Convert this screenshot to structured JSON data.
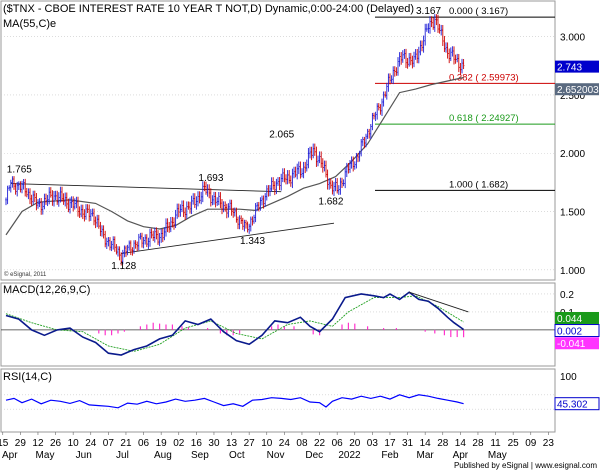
{
  "colors": {
    "price_up": "#1f1fd6",
    "price_down": "#cc0000",
    "ma": "#555555",
    "fib_red": "#cc0000",
    "fib_green": "#1a9a1a",
    "macd_line": "#0a1a8c",
    "macd_signal": "#22a022",
    "macd_hist": "#ff33cc",
    "rsi_line": "#0000ff",
    "grid": "#c8c8c8",
    "tag_blue_bg": "#0000cc",
    "tag_green_bg": "#1a9a1a",
    "tag_magenta_bg": "#ff33ff",
    "tag_gray_bg": "#5a6a80"
  },
  "header": {
    "title": "($TNX - CBOE INTEREST RATE 10 YEAR T NOT,D) Dynamic,0:00-24:00 (Delayed)",
    "ma_label": "MA(55,C)e",
    "copyright": "© eSignal, 2011"
  },
  "footer": {
    "publisher": "Published by eSignal | www.esignal.com"
  },
  "chart_data": [
    {
      "type": "candlestick",
      "title": "($TNX - CBOE INTEREST RATE 10 YEAR T NOT,D) Dynamic,0:00-24:00 (Delayed)",
      "ylim": [
        0.93,
        3.28
      ],
      "y_ticks": [
        1.0,
        1.5,
        2.0,
        2.5,
        3.0
      ],
      "y_tick_labels": [
        "1.000",
        "1.500",
        "2.000",
        "2.500",
        "3.000"
      ],
      "last_price_tag": "2.743",
      "ma_tag": "2.652003",
      "price_points": [
        [
          0,
          1.6
        ],
        [
          3,
          1.75
        ],
        [
          12,
          1.69
        ],
        [
          20,
          1.55
        ],
        [
          30,
          1.64
        ],
        [
          40,
          1.57
        ],
        [
          50,
          1.48
        ],
        [
          55,
          1.47
        ],
        [
          60,
          1.3
        ],
        [
          67,
          1.2
        ],
        [
          72,
          1.13
        ],
        [
          80,
          1.22
        ],
        [
          90,
          1.28
        ],
        [
          98,
          1.3
        ],
        [
          108,
          1.5
        ],
        [
          116,
          1.55
        ],
        [
          124,
          1.69
        ],
        [
          132,
          1.58
        ],
        [
          140,
          1.52
        ],
        [
          146,
          1.43
        ],
        [
          150,
          1.35
        ],
        [
          156,
          1.5
        ],
        [
          162,
          1.65
        ],
        [
          170,
          1.76
        ],
        [
          178,
          1.8
        ],
        [
          186,
          1.87
        ],
        [
          192,
          2.03
        ],
        [
          197,
          1.91
        ],
        [
          203,
          1.72
        ],
        [
          207,
          1.68
        ],
        [
          213,
          1.85
        ],
        [
          220,
          1.98
        ],
        [
          228,
          2.25
        ],
        [
          235,
          2.45
        ],
        [
          242,
          2.7
        ],
        [
          248,
          2.83
        ],
        [
          255,
          2.78
        ],
        [
          260,
          2.95
        ],
        [
          264,
          3.08
        ],
        [
          268,
          3.16
        ],
        [
          272,
          3.0
        ],
        [
          276,
          2.87
        ],
        [
          281,
          2.8
        ],
        [
          286,
          2.74
        ]
      ],
      "ma_points": [
        [
          0,
          1.3
        ],
        [
          10,
          1.5
        ],
        [
          20,
          1.58
        ],
        [
          40,
          1.6
        ],
        [
          56,
          1.57
        ],
        [
          66,
          1.5
        ],
        [
          76,
          1.42
        ],
        [
          86,
          1.37
        ],
        [
          96,
          1.35
        ],
        [
          106,
          1.38
        ],
        [
          116,
          1.46
        ],
        [
          126,
          1.52
        ],
        [
          136,
          1.52
        ],
        [
          146,
          1.52
        ],
        [
          156,
          1.51
        ],
        [
          166,
          1.57
        ],
        [
          176,
          1.63
        ],
        [
          186,
          1.7
        ],
        [
          196,
          1.74
        ],
        [
          206,
          1.8
        ],
        [
          216,
          1.93
        ],
        [
          226,
          2.08
        ],
        [
          236,
          2.3
        ],
        [
          246,
          2.52
        ],
        [
          256,
          2.55
        ],
        [
          266,
          2.59
        ],
        [
          276,
          2.62
        ],
        [
          286,
          2.65
        ]
      ],
      "trend_lines": [
        {
          "from": [
            3,
            1.74
          ],
          "to": [
            172,
            1.67
          ]
        },
        {
          "from": [
            72,
            1.14
          ],
          "to": [
            205,
            1.4
          ]
        }
      ],
      "fib_levels": [
        {
          "value": 3.167,
          "label": "0.000 ( 3.167)",
          "color": "#000000"
        },
        {
          "value": 2.59973,
          "label": "0.382 ( 2.59973)",
          "color": "#cc0000"
        },
        {
          "value": 2.24927,
          "label": "0.618 ( 2.24927)",
          "color": "#1a9a1a"
        },
        {
          "value": 1.682,
          "label": "1.000 ( 1.682)",
          "color": "#000000"
        }
      ],
      "annotations": [
        {
          "text": "1.765",
          "x": 3,
          "y": 1.765
        },
        {
          "text": "1.128",
          "x": 72,
          "y": 1.128
        },
        {
          "text": "1.693",
          "x": 124,
          "y": 1.693
        },
        {
          "text": "1.343",
          "x": 150,
          "y": 1.343
        },
        {
          "text": "2.065",
          "x": 172,
          "y": 2.065
        },
        {
          "text": "1.682",
          "x": 199,
          "y": 1.682
        },
        {
          "text": "3.167",
          "x": 212,
          "y": 3.167
        }
      ]
    },
    {
      "type": "macd",
      "title": "MACD(12,26,9,C)",
      "ylim": [
        -0.19,
        0.25
      ],
      "y_ticks": [
        0.2,
        0.1
      ],
      "y_tick_labels": [
        "0.2",
        "0.1"
      ],
      "tags": [
        "0.044",
        "0.002",
        "-0.041"
      ],
      "macd_line": [
        [
          0,
          0.08
        ],
        [
          8,
          0.06
        ],
        [
          16,
          0.0
        ],
        [
          24,
          -0.03
        ],
        [
          32,
          0.0
        ],
        [
          40,
          0.01
        ],
        [
          48,
          -0.04
        ],
        [
          56,
          -0.07
        ],
        [
          64,
          -0.13
        ],
        [
          72,
          -0.14
        ],
        [
          80,
          -0.11
        ],
        [
          88,
          -0.09
        ],
        [
          96,
          -0.05
        ],
        [
          104,
          -0.03
        ],
        [
          112,
          0.05
        ],
        [
          120,
          0.03
        ],
        [
          128,
          0.06
        ],
        [
          136,
          -0.01
        ],
        [
          144,
          -0.06
        ],
        [
          152,
          -0.08
        ],
        [
          160,
          -0.03
        ],
        [
          168,
          0.05
        ],
        [
          176,
          0.04
        ],
        [
          184,
          0.07
        ],
        [
          190,
          0.02
        ],
        [
          196,
          -0.01
        ],
        [
          204,
          0.06
        ],
        [
          212,
          0.18
        ],
        [
          222,
          0.2
        ],
        [
          230,
          0.19
        ],
        [
          236,
          0.18
        ],
        [
          240,
          0.2
        ],
        [
          246,
          0.17
        ],
        [
          252,
          0.21
        ],
        [
          258,
          0.17
        ],
        [
          264,
          0.16
        ],
        [
          270,
          0.12
        ],
        [
          276,
          0.07
        ],
        [
          280,
          0.04
        ],
        [
          286,
          0.002
        ]
      ],
      "signal_line": [
        [
          0,
          0.09
        ],
        [
          16,
          0.04
        ],
        [
          32,
          0.0
        ],
        [
          48,
          -0.01
        ],
        [
          64,
          -0.09
        ],
        [
          80,
          -0.12
        ],
        [
          96,
          -0.08
        ],
        [
          112,
          0.01
        ],
        [
          128,
          0.05
        ],
        [
          144,
          -0.02
        ],
        [
          160,
          -0.05
        ],
        [
          176,
          0.03
        ],
        [
          190,
          0.05
        ],
        [
          204,
          0.02
        ],
        [
          214,
          0.1
        ],
        [
          230,
          0.18
        ],
        [
          246,
          0.18
        ],
        [
          256,
          0.19
        ],
        [
          270,
          0.13
        ],
        [
          286,
          0.044
        ]
      ],
      "histogram": [
        [
          58,
          -0.02
        ],
        [
          62,
          -0.03
        ],
        [
          66,
          -0.03
        ],
        [
          70,
          -0.02
        ],
        [
          74,
          -0.01
        ],
        [
          84,
          0.02
        ],
        [
          88,
          0.03
        ],
        [
          92,
          0.04
        ],
        [
          96,
          0.035
        ],
        [
          100,
          0.03
        ],
        [
          104,
          0.03
        ],
        [
          110,
          0.02
        ],
        [
          114,
          0.015
        ],
        [
          126,
          0.01
        ],
        [
          134,
          -0.02
        ],
        [
          138,
          -0.03
        ],
        [
          142,
          -0.03
        ],
        [
          146,
          -0.02
        ],
        [
          166,
          0.02
        ],
        [
          170,
          0.03
        ],
        [
          174,
          0.02
        ],
        [
          180,
          0.02
        ],
        [
          192,
          -0.025
        ],
        [
          196,
          -0.03
        ],
        [
          210,
          0.03
        ],
        [
          214,
          0.04
        ],
        [
          218,
          0.035
        ],
        [
          226,
          0.02
        ],
        [
          236,
          0.01
        ],
        [
          244,
          0.01
        ],
        [
          262,
          -0.01
        ],
        [
          268,
          -0.02
        ],
        [
          274,
          -0.03
        ],
        [
          278,
          -0.04
        ],
        [
          282,
          -0.04
        ],
        [
          286,
          -0.041
        ]
      ],
      "trend_line": {
        "from": [
          252,
          0.21
        ],
        "to": [
          289,
          0.1
        ]
      }
    },
    {
      "type": "rsi",
      "title": "RSI(14,C)",
      "ylim": [
        0,
        100
      ],
      "y_ticks": [
        100
      ],
      "y_tick_labels": [
        "100"
      ],
      "bands": [
        70,
        30
      ],
      "tag": "45.302",
      "values": [
        [
          0,
          55
        ],
        [
          5,
          60
        ],
        [
          10,
          48
        ],
        [
          16,
          58
        ],
        [
          22,
          45
        ],
        [
          28,
          55
        ],
        [
          34,
          52
        ],
        [
          40,
          46
        ],
        [
          46,
          54
        ],
        [
          52,
          42
        ],
        [
          58,
          40
        ],
        [
          64,
          38
        ],
        [
          70,
          34
        ],
        [
          76,
          47
        ],
        [
          82,
          44
        ],
        [
          88,
          52
        ],
        [
          94,
          45
        ],
        [
          100,
          50
        ],
        [
          106,
          58
        ],
        [
          112,
          52
        ],
        [
          118,
          55
        ],
        [
          124,
          60
        ],
        [
          130,
          50
        ],
        [
          136,
          40
        ],
        [
          142,
          45
        ],
        [
          148,
          38
        ],
        [
          154,
          55
        ],
        [
          160,
          57
        ],
        [
          166,
          62
        ],
        [
          172,
          60
        ],
        [
          178,
          57
        ],
        [
          184,
          62
        ],
        [
          190,
          50
        ],
        [
          196,
          48
        ],
        [
          200,
          36
        ],
        [
          204,
          52
        ],
        [
          210,
          62
        ],
        [
          216,
          58
        ],
        [
          222,
          66
        ],
        [
          228,
          60
        ],
        [
          234,
          66
        ],
        [
          240,
          58
        ],
        [
          246,
          70
        ],
        [
          252,
          62
        ],
        [
          258,
          70
        ],
        [
          264,
          66
        ],
        [
          270,
          60
        ],
        [
          276,
          55
        ],
        [
          282,
          50
        ],
        [
          286,
          45.302
        ]
      ]
    }
  ],
  "x_axis": {
    "day_labels": [
      {
        "i": 1,
        "text": "15"
      },
      {
        "i": 11,
        "text": "29"
      },
      {
        "i": 21,
        "text": "12"
      },
      {
        "i": 31,
        "text": "26"
      },
      {
        "i": 41,
        "text": "10"
      },
      {
        "i": 51,
        "text": "24"
      },
      {
        "i": 61,
        "text": "07"
      },
      {
        "i": 71,
        "text": "21"
      },
      {
        "i": 81,
        "text": "06"
      },
      {
        "i": 91,
        "text": "19"
      },
      {
        "i": 101,
        "text": "02"
      },
      {
        "i": 111,
        "text": "16"
      },
      {
        "i": 121,
        "text": "30"
      },
      {
        "i": 131,
        "text": "13"
      },
      {
        "i": 141,
        "text": "27"
      },
      {
        "i": 151,
        "text": "10"
      },
      {
        "i": 161,
        "text": "24"
      },
      {
        "i": 171,
        "text": "08"
      },
      {
        "i": 181,
        "text": "22"
      },
      {
        "i": 191,
        "text": "06"
      },
      {
        "i": 201,
        "text": "20"
      },
      {
        "i": 211,
        "text": "03"
      },
      {
        "i": 221,
        "text": "17"
      },
      {
        "i": 231,
        "text": "31"
      },
      {
        "i": 241,
        "text": "14"
      },
      {
        "i": 251,
        "text": "28"
      },
      {
        "i": 261,
        "text": "14"
      },
      {
        "i": 271,
        "text": "28"
      },
      {
        "i": 281,
        "text": "11"
      },
      {
        "i": 291,
        "text": "25"
      },
      {
        "i": 301,
        "text": "09"
      },
      {
        "i": 311,
        "text": "23"
      }
    ],
    "month_labels": [
      {
        "i": 5,
        "text": "Apr"
      },
      {
        "i": 25,
        "text": "May"
      },
      {
        "i": 47,
        "text": "Jun"
      },
      {
        "i": 69,
        "text": "Jul"
      },
      {
        "i": 92,
        "text": "Aug"
      },
      {
        "i": 113,
        "text": "Sep"
      },
      {
        "i": 134,
        "text": "Oct"
      },
      {
        "i": 156,
        "text": "Nov"
      },
      {
        "i": 178,
        "text": "Dec"
      },
      {
        "i": 198,
        "text": "2022"
      },
      {
        "i": 221,
        "text": "Feb"
      },
      {
        "i": 241,
        "text": "Mar"
      },
      {
        "i": 261,
        "text": "Apr"
      },
      {
        "i": 282,
        "text": "May"
      }
    ]
  }
}
